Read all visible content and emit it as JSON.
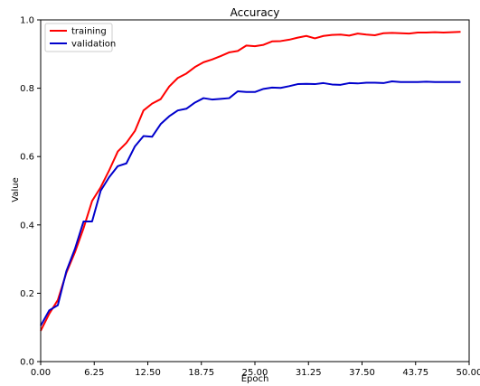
{
  "chart_data": {
    "type": "line",
    "title": "Accuracy",
    "xlabel": "Epoch",
    "ylabel": "Value",
    "xlim": [
      0,
      50
    ],
    "ylim": [
      0,
      1
    ],
    "grid": false,
    "legend_position": "top-left",
    "x_ticks": [
      0,
      6.25,
      12.5,
      18.75,
      25,
      31.25,
      37.5,
      43.75,
      50
    ],
    "x_tick_labels": [
      "0.00",
      "6.25",
      "12.50",
      "18.75",
      "25.00",
      "31.25",
      "37.50",
      "43.75",
      "50.00"
    ],
    "y_ticks": [
      0,
      0.2,
      0.4,
      0.6,
      0.8,
      1.0
    ],
    "y_tick_labels": [
      "0.0",
      "0.2",
      "0.4",
      "0.6",
      "0.8",
      "1.0"
    ],
    "x": [
      0,
      1,
      2,
      3,
      4,
      5,
      6,
      7,
      8,
      9,
      10,
      11,
      12,
      13,
      14,
      15,
      16,
      17,
      18,
      19,
      20,
      21,
      22,
      23,
      24,
      25,
      26,
      27,
      28,
      29,
      30,
      31,
      32,
      33,
      34,
      35,
      36,
      37,
      38,
      39,
      40,
      41,
      42,
      43,
      44,
      45,
      46,
      47,
      48,
      49
    ],
    "series": [
      {
        "name": "training",
        "color": "#ff0000",
        "values": [
          0.09,
          0.14,
          0.18,
          0.26,
          0.32,
          0.39,
          0.47,
          0.51,
          0.56,
          0.615,
          0.64,
          0.675,
          0.735,
          0.755,
          0.768,
          0.805,
          0.83,
          0.843,
          0.862,
          0.876,
          0.884,
          0.894,
          0.905,
          0.909,
          0.925,
          0.923,
          0.927,
          0.937,
          0.938,
          0.942,
          0.948,
          0.953,
          0.946,
          0.953,
          0.956,
          0.957,
          0.954,
          0.96,
          0.957,
          0.955,
          0.961,
          0.962,
          0.961,
          0.96,
          0.963,
          0.963,
          0.964,
          0.963,
          0.964,
          0.965
        ]
      },
      {
        "name": "validation",
        "color": "#0000cc",
        "values": [
          0.105,
          0.15,
          0.165,
          0.265,
          0.33,
          0.41,
          0.41,
          0.5,
          0.54,
          0.572,
          0.58,
          0.63,
          0.66,
          0.658,
          0.695,
          0.718,
          0.735,
          0.74,
          0.758,
          0.771,
          0.767,
          0.769,
          0.771,
          0.791,
          0.789,
          0.789,
          0.798,
          0.802,
          0.801,
          0.806,
          0.812,
          0.813,
          0.812,
          0.815,
          0.811,
          0.81,
          0.815,
          0.814,
          0.816,
          0.816,
          0.815,
          0.82,
          0.818,
          0.818,
          0.818,
          0.819,
          0.818,
          0.818,
          0.818,
          0.818
        ]
      }
    ]
  }
}
